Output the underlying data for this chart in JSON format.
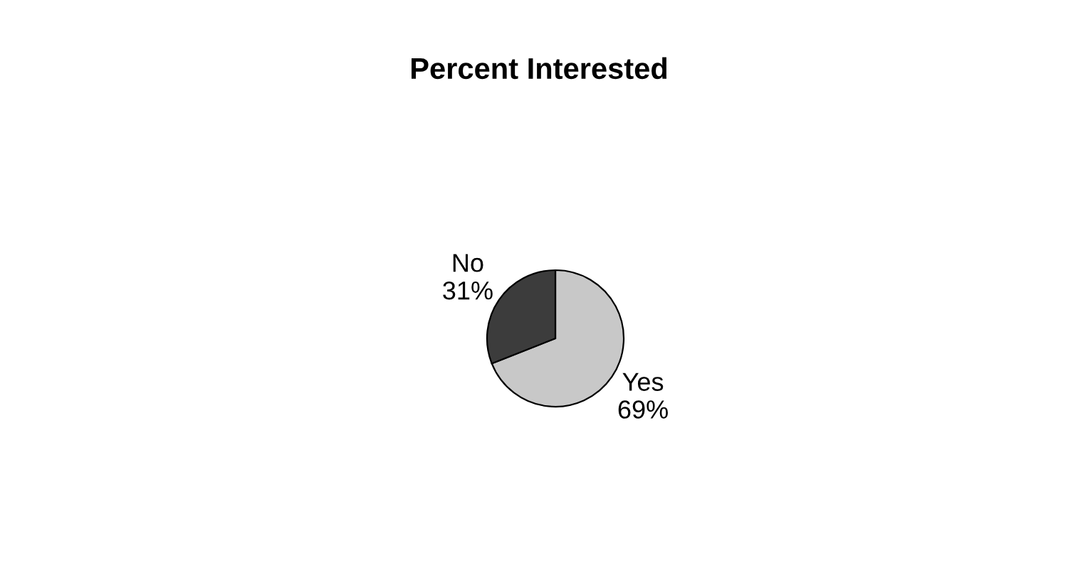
{
  "chart_data": {
    "type": "pie",
    "title": "Percent Interested",
    "categories": [
      "Yes",
      "No"
    ],
    "values": [
      69,
      31
    ],
    "colors": [
      "#c8c8c8",
      "#3c3c3c"
    ],
    "value_labels": [
      "69%",
      "31%"
    ]
  }
}
